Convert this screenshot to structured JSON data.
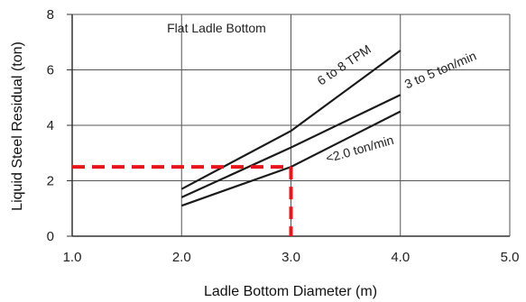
{
  "chart_data": {
    "type": "line",
    "title": "",
    "xlabel": "Ladle Bottom Diameter (m)",
    "ylabel": "Liquid Steel Residual (ton)",
    "xlim": [
      1.0,
      5.0
    ],
    "ylim": [
      0,
      8
    ],
    "x_ticks": [
      "1.0",
      "2.0",
      "3.0",
      "4.0",
      "5.0"
    ],
    "y_ticks": [
      "0",
      "2",
      "4",
      "6",
      "8"
    ],
    "grid": true,
    "annotation": "Flat Ladle Bottom",
    "series": [
      {
        "name": "6 to 8 TPM",
        "x": [
          2.0,
          3.0,
          4.0
        ],
        "y": [
          1.7,
          3.8,
          6.7
        ]
      },
      {
        "name": "3 to 5 ton/min",
        "x": [
          2.0,
          3.0,
          4.0
        ],
        "y": [
          1.4,
          3.2,
          5.1
        ]
      },
      {
        "name": "<2.0 ton/min",
        "x": [
          2.0,
          3.0,
          4.0
        ],
        "y": [
          1.1,
          2.5,
          4.5
        ]
      }
    ],
    "reference_lines": {
      "x": 3.0,
      "y": 2.5,
      "color": "#e8141b",
      "style": "dashed"
    }
  }
}
